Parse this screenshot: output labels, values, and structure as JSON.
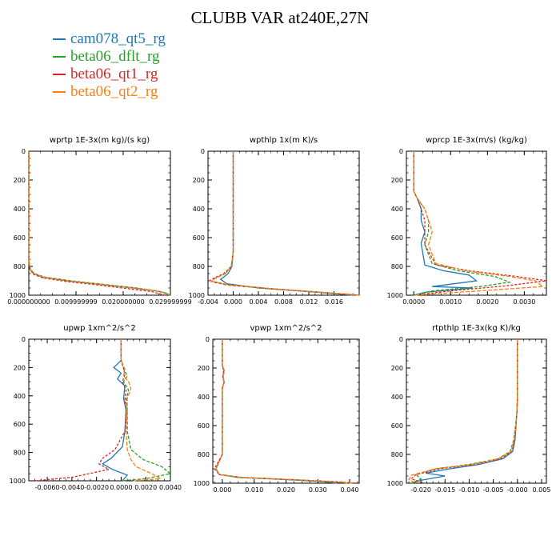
{
  "title": "CLUBB VAR at240E,27N",
  "colors": [
    "#1f77b4",
    "#2ca02c",
    "#d62728",
    "#ff7f0e"
  ],
  "chart_data": [
    {
      "type": "line",
      "title": "wprtp  1E-3x(m kg)/(s kg)",
      "xlim": [
        0.0,
        0.03
      ],
      "ylim": [
        1000,
        0
      ],
      "xticks": [
        "0.000000000",
        "0.009999999",
        "0.020000000",
        "0.029999999"
      ],
      "xtick_values": [
        0.0,
        0.01,
        0.02,
        0.03
      ],
      "yticks": [
        0,
        200,
        400,
        600,
        800,
        1000
      ],
      "series": [
        {
          "name": "cam078_qt5_rg",
          "x": [
            0,
            0,
            0.0003,
            0.001,
            0.003,
            0.008,
            0.015,
            0.022,
            0.027,
            0.029,
            0.03
          ],
          "y": [
            0,
            760,
            820,
            850,
            875,
            900,
            925,
            950,
            970,
            985,
            1000
          ]
        },
        {
          "name": "beta06_dflt_rg",
          "x": [
            0,
            0,
            0.0003,
            0.0012,
            0.0035,
            0.009,
            0.016,
            0.023,
            0.028,
            0.03
          ],
          "y": [
            0,
            760,
            820,
            850,
            875,
            900,
            925,
            950,
            975,
            1000
          ]
        },
        {
          "name": "beta06_qt1_rg",
          "x": [
            0,
            0,
            0.0002,
            0.001,
            0.003,
            0.008,
            0.015,
            0.021,
            0.026,
            0.029
          ],
          "y": [
            0,
            760,
            820,
            855,
            880,
            905,
            930,
            955,
            975,
            1000
          ]
        },
        {
          "name": "beta06_qt2_rg",
          "x": [
            0,
            0,
            0.0003,
            0.0012,
            0.0035,
            0.009,
            0.016,
            0.023,
            0.028,
            0.03
          ],
          "y": [
            0,
            760,
            822,
            852,
            878,
            902,
            928,
            952,
            976,
            1000
          ]
        }
      ]
    },
    {
      "type": "line",
      "title": "wpthlp  1x(m K)/s",
      "xlim": [
        -0.004,
        0.02
      ],
      "ylim": [
        1000,
        0
      ],
      "xticks": [
        "-0.004",
        "0.000",
        "0.004",
        "0.008",
        "0.012",
        "0.016"
      ],
      "xtick_values": [
        -0.004,
        0.0,
        0.004,
        0.008,
        0.012,
        0.016
      ],
      "yticks": [
        0,
        200,
        400,
        600,
        800,
        1000
      ],
      "series": [
        {
          "name": "cam078_qt5_rg",
          "x": [
            0,
            0,
            -0.0002,
            -0.0008,
            -0.002,
            -0.001,
            0.004,
            0.012,
            0.019
          ],
          "y": [
            0,
            700,
            800,
            850,
            890,
            920,
            950,
            975,
            1000
          ]
        },
        {
          "name": "beta06_dflt_rg",
          "x": [
            0,
            0,
            -0.0003,
            -0.0012,
            -0.0028,
            -0.0035,
            -0.001,
            0.006,
            0.014,
            0.02
          ],
          "y": [
            0,
            700,
            800,
            850,
            880,
            905,
            930,
            955,
            980,
            1000
          ]
        },
        {
          "name": "beta06_qt1_rg",
          "x": [
            0,
            0,
            -0.0003,
            -0.0015,
            -0.003,
            -0.0038,
            -0.001,
            0.006,
            0.014,
            0.02
          ],
          "y": [
            0,
            700,
            800,
            850,
            880,
            900,
            925,
            955,
            980,
            1000
          ]
        },
        {
          "name": "beta06_qt2_rg",
          "x": [
            0,
            0,
            -0.0003,
            -0.0013,
            -0.0028,
            -0.0034,
            -0.0008,
            0.007,
            0.015,
            0.02
          ],
          "y": [
            0,
            700,
            800,
            852,
            882,
            903,
            928,
            957,
            982,
            1000
          ]
        }
      ]
    },
    {
      "type": "line",
      "title": "wprcp  1E-3x(m/s) (kg/kg)",
      "xlim": [
        -0.0002,
        0.0036
      ],
      "ylim": [
        1000,
        0
      ],
      "xticks": [
        "0.0000",
        "0.0010",
        "0.0020",
        "0.0030"
      ],
      "xtick_values": [
        0.0,
        0.001,
        0.002,
        0.003
      ],
      "yticks": [
        0,
        200,
        400,
        600,
        800,
        1000
      ],
      "series": [
        {
          "name": "cam078_qt5_rg",
          "x": [
            0,
            0,
            0.0001,
            0.0002,
            0.0002,
            0.0003,
            0.0002,
            0.0003,
            0.0008,
            0.0015,
            0.0017,
            0.0005,
            0.0016,
            0.0003,
            0
          ],
          "y": [
            0,
            280,
            330,
            400,
            480,
            560,
            640,
            790,
            830,
            860,
            900,
            940,
            950,
            980,
            1000
          ]
        },
        {
          "name": "beta06_dflt_rg",
          "x": [
            0,
            0,
            0.0001,
            0.0003,
            0.0004,
            0.0004,
            0.0003,
            0.0005,
            0.0012,
            0.0022,
            0.0026,
            0.0018,
            0.0005,
            0
          ],
          "y": [
            0,
            280,
            330,
            400,
            480,
            560,
            650,
            780,
            830,
            870,
            910,
            940,
            970,
            1000
          ]
        },
        {
          "name": "beta06_qt1_rg",
          "x": [
            0,
            0,
            0.0001,
            0.0002,
            0.0003,
            0.0003,
            0.0003,
            0.0006,
            0.0015,
            0.0028,
            0.0036,
            0.0025,
            0.001,
            0
          ],
          "y": [
            0,
            280,
            330,
            400,
            480,
            560,
            650,
            790,
            830,
            870,
            900,
            935,
            970,
            1000
          ]
        },
        {
          "name": "beta06_qt2_rg",
          "x": [
            0,
            0,
            0.0001,
            0.0003,
            0.0004,
            0.0005,
            0.0004,
            0.0006,
            0.0014,
            0.0026,
            0.0033,
            0.0035,
            0.0015,
            0
          ],
          "y": [
            0,
            280,
            330,
            400,
            480,
            560,
            650,
            780,
            830,
            870,
            900,
            940,
            975,
            1000
          ]
        }
      ]
    },
    {
      "type": "line",
      "title": "upwp  1xm^2/s^2",
      "xlim": [
        -0.0075,
        0.004
      ],
      "ylim": [
        1000,
        0
      ],
      "xticks": [
        "-0.0060",
        "-0.0040",
        "-0.0020",
        "0.0000",
        "0.0020",
        "0.0040"
      ],
      "xtick_values": [
        -0.006,
        -0.004,
        -0.002,
        0.0,
        0.002,
        0.004
      ],
      "yticks": [
        0,
        200,
        400,
        600,
        800,
        1000
      ],
      "series": [
        {
          "name": "cam078_qt5_rg",
          "x": [
            0,
            0,
            -0.0006,
            0,
            -0.0003,
            0.0003,
            0.0002,
            0.0004,
            0.0003,
            0.0001,
            -0.0008,
            -0.0015,
            -0.0007,
            0.0005,
            0.0001
          ],
          "y": [
            0,
            150,
            200,
            240,
            280,
            330,
            420,
            500,
            650,
            760,
            840,
            880,
            920,
            960,
            1000
          ]
        },
        {
          "name": "beta06_dflt_rg",
          "x": [
            0,
            0,
            0.0002,
            0.0005,
            0.0002,
            0.0006,
            0.0004,
            0.0005,
            0.0005,
            0.0008,
            0.0018,
            0.0033,
            0.004,
            0.002,
            0
          ],
          "y": [
            0,
            150,
            210,
            260,
            300,
            360,
            430,
            500,
            650,
            780,
            850,
            900,
            950,
            985,
            1000
          ]
        },
        {
          "name": "beta06_qt1_rg",
          "x": [
            0,
            0,
            0.0002,
            0.0003,
            0.0001,
            0.0004,
            0.0003,
            0.0004,
            0.0003,
            -0.0005,
            -0.0015,
            -0.0018,
            -0.001,
            -0.004,
            -0.007
          ],
          "y": [
            0,
            150,
            200,
            250,
            300,
            360,
            430,
            500,
            650,
            780,
            840,
            880,
            920,
            975,
            1000
          ]
        },
        {
          "name": "beta06_qt2_rg",
          "x": [
            0,
            0,
            0.0003,
            0.0002,
            0.0006,
            0.0008,
            0.0005,
            0.0005,
            0.0004,
            0.0005,
            0.0008,
            0.0012,
            0.0025,
            0.0032,
            0.001
          ],
          "y": [
            0,
            150,
            210,
            260,
            300,
            350,
            420,
            500,
            650,
            780,
            850,
            900,
            950,
            985,
            1000
          ]
        }
      ]
    },
    {
      "type": "line",
      "title": "vpwp  1xm^2/s^2",
      "xlim": [
        -0.003,
        0.043
      ],
      "ylim": [
        1000,
        0
      ],
      "xticks": [
        "0.000",
        "0.010",
        "0.020",
        "0.030",
        "0.040"
      ],
      "xtick_values": [
        0.0,
        0.01,
        0.02,
        0.03,
        0.04
      ],
      "yticks": [
        0,
        200,
        400,
        600,
        800,
        1000
      ],
      "series": [
        {
          "name": "cam078_qt5_rg",
          "x": [
            0,
            0,
            0.0005,
            0.0002,
            0.0006,
            0,
            0,
            -0.002,
            -0.001,
            0.005,
            0.02,
            0.032,
            0.036
          ],
          "y": [
            0,
            180,
            220,
            260,
            300,
            340,
            800,
            900,
            940,
            960,
            975,
            990,
            1000
          ]
        },
        {
          "name": "beta06_dflt_rg",
          "x": [
            0,
            0,
            0.0006,
            0.0003,
            0.0005,
            0,
            0,
            -0.002,
            -0.001,
            0.006,
            0.022,
            0.035,
            0.04
          ],
          "y": [
            0,
            180,
            220,
            260,
            300,
            340,
            800,
            900,
            940,
            960,
            975,
            990,
            1000
          ]
        },
        {
          "name": "beta06_qt1_rg",
          "x": [
            0,
            0,
            0.0004,
            0.0001,
            0.0005,
            0,
            0,
            -0.0025,
            -0.001,
            0.006,
            0.022,
            0.036,
            0.042
          ],
          "y": [
            0,
            180,
            220,
            260,
            300,
            340,
            800,
            900,
            940,
            960,
            975,
            990,
            1000
          ]
        },
        {
          "name": "beta06_qt2_rg",
          "x": [
            0,
            0,
            0.0007,
            0.0002,
            0.0006,
            0,
            0,
            -0.002,
            -0.001,
            0.006,
            0.022,
            0.034,
            0.041
          ],
          "y": [
            0,
            180,
            220,
            260,
            300,
            340,
            800,
            900,
            940,
            960,
            975,
            990,
            1000
          ]
        }
      ]
    },
    {
      "type": "line",
      "title": "rtpthlp  1E-3x(kg K)/kg",
      "xlim": [
        -0.023,
        0.006
      ],
      "ylim": [
        1000,
        0
      ],
      "xticks": [
        "-0.020",
        "-0.015",
        "-0.010",
        "-0.005",
        "-0.000",
        "0.005"
      ],
      "xtick_values": [
        -0.02,
        -0.015,
        -0.01,
        -0.005,
        0.0,
        0.005
      ],
      "yticks": [
        0,
        200,
        400,
        600,
        800,
        1000
      ],
      "series": [
        {
          "name": "cam078_qt5_rg",
          "x": [
            0,
            0,
            -0.0001,
            -0.0003,
            -0.0005,
            -0.001,
            -0.003,
            -0.008,
            -0.014,
            -0.019,
            -0.015,
            -0.02,
            -0.022
          ],
          "y": [
            0,
            400,
            500,
            600,
            700,
            780,
            830,
            870,
            900,
            930,
            950,
            980,
            1000
          ]
        },
        {
          "name": "beta06_dflt_rg",
          "x": [
            0,
            0,
            -0.0001,
            -0.0004,
            -0.0008,
            -0.0015,
            -0.004,
            -0.01,
            -0.017,
            -0.021,
            -0.02,
            -0.022
          ],
          "y": [
            0,
            400,
            500,
            600,
            700,
            780,
            830,
            870,
            900,
            940,
            970,
            1000
          ]
        },
        {
          "name": "beta06_qt1_rg",
          "x": [
            0,
            0,
            -0.0001,
            -0.0003,
            -0.0006,
            -0.0012,
            -0.0035,
            -0.009,
            -0.016,
            -0.021,
            -0.022,
            -0.019
          ],
          "y": [
            0,
            400,
            500,
            600,
            700,
            780,
            830,
            870,
            900,
            940,
            970,
            1000
          ]
        },
        {
          "name": "beta06_qt2_rg",
          "x": [
            0,
            0,
            -0.0001,
            -0.0003,
            -0.0007,
            -0.0013,
            -0.004,
            -0.0095,
            -0.017,
            -0.022,
            -0.0225,
            -0.021
          ],
          "y": [
            0,
            400,
            500,
            600,
            700,
            780,
            830,
            870,
            900,
            945,
            975,
            1000
          ]
        }
      ]
    }
  ]
}
